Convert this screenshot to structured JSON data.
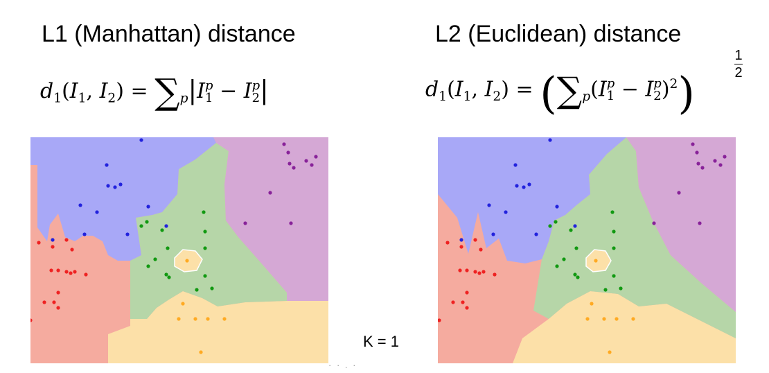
{
  "titles": {
    "left": "L1 (Manhattan) distance",
    "right": "L2 (Euclidean) distance"
  },
  "formulas": {
    "left": "d_1(I_1, I_2) = Σ_p |I_1^p − I_2^p|",
    "right": "d_1(I_1, I_2) = (Σ_p (I_1^p − I_2^p)^2)^(1/2)"
  },
  "exponent": {
    "numerator": "1",
    "denominator": "2"
  },
  "k_label": "K = 1",
  "footer_text": "·   · .  ·",
  "colors": {
    "blue_region": "#a8a8f7",
    "green_region": "#b6d6a8",
    "purple_region": "#d5a8d5",
    "red_region": "#f5ab9f",
    "orange_region": "#fce0a8",
    "blue_point": "#2222dd",
    "green_point": "#119911",
    "purple_point": "#882299",
    "red_point": "#ee2222",
    "orange_point": "#ffaa22"
  }
}
